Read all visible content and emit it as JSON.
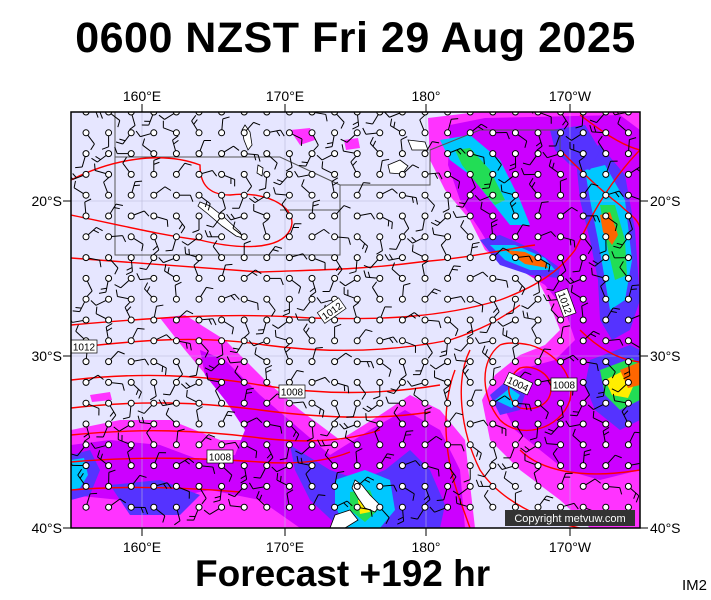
{
  "title": "0600 NZST Fri 29 Aug 2025",
  "subtitle": "Forecast +192 hr",
  "product_code": "IM2",
  "copyright": "Copyright metvuw.com",
  "map": {
    "lon_labels": [
      "160°E",
      "170°E",
      "180°",
      "170°W"
    ],
    "lat_labels": [
      "20°S",
      "30°S",
      "40°S"
    ],
    "isobar_labels": [
      "1012",
      "1012",
      "1012",
      "1008",
      "1008",
      "1004",
      "1008"
    ],
    "colors": {
      "ocean": "#e6e6ff",
      "isobar": "#ff0000",
      "rain_light": "#ff33ff",
      "rain_light2": "#cc00ff",
      "rain_moderate": "#5533ff",
      "rain_heavy": "#00c8ff",
      "rain_heavier": "#22dd55",
      "rain_very_heavy": "#ffee00",
      "rain_extreme": "#ff6600",
      "rain_max": "#dd0000",
      "land": "#ffffff",
      "wind": "#000000"
    }
  }
}
